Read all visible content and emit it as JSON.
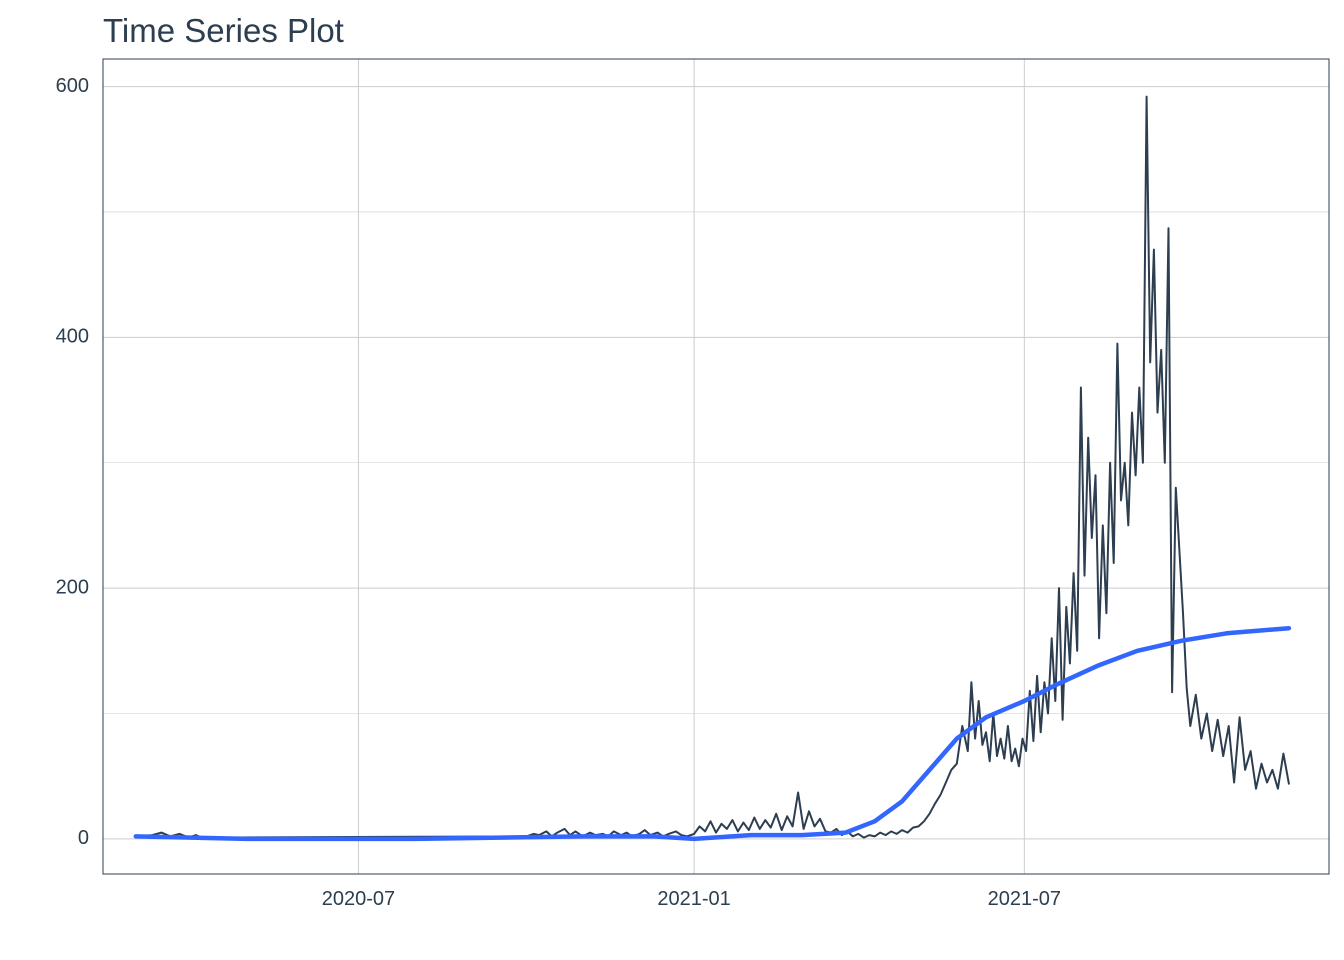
{
  "chart_data": {
    "type": "line",
    "title": "Time Series Plot",
    "xlabel": "",
    "ylabel": "",
    "x_axis": {
      "type": "date",
      "range": [
        "2020-02-12",
        "2021-12-15"
      ],
      "ticks": [
        "2020-07-01",
        "2021-01-01",
        "2021-07-01"
      ],
      "tick_labels": [
        "2020-07",
        "2021-01",
        "2021-07"
      ]
    },
    "y_axis": {
      "range": [
        -28,
        622
      ],
      "ticks": [
        0,
        200,
        400,
        600
      ],
      "tick_labels": [
        "0",
        "200",
        "400",
        "600"
      ]
    },
    "grid": true,
    "legend": "none",
    "colors": {
      "series": "#2c3e50",
      "trend": "#3366ff",
      "grid": "#cccccc",
      "text": "#2c3e50"
    },
    "series": [
      {
        "kind": "raw",
        "points": [
          [
            "2020-03-01",
            2
          ],
          [
            "2020-03-10",
            3
          ],
          [
            "2020-03-15",
            5
          ],
          [
            "2020-03-20",
            2
          ],
          [
            "2020-03-25",
            4
          ],
          [
            "2020-03-30",
            1
          ],
          [
            "2020-04-03",
            3
          ],
          [
            "2020-04-06",
            1
          ],
          [
            "2020-10-01",
            2
          ],
          [
            "2020-10-05",
            4
          ],
          [
            "2020-10-08",
            3
          ],
          [
            "2020-10-12",
            6
          ],
          [
            "2020-10-15",
            2
          ],
          [
            "2020-10-18",
            5
          ],
          [
            "2020-10-22",
            8
          ],
          [
            "2020-10-25",
            3
          ],
          [
            "2020-10-28",
            6
          ],
          [
            "2020-11-01",
            2
          ],
          [
            "2020-11-05",
            5
          ],
          [
            "2020-11-08",
            3
          ],
          [
            "2020-11-12",
            4
          ],
          [
            "2020-11-15",
            2
          ],
          [
            "2020-11-18",
            6
          ],
          [
            "2020-11-22",
            3
          ],
          [
            "2020-11-25",
            5
          ],
          [
            "2020-11-28",
            2
          ],
          [
            "2020-12-02",
            4
          ],
          [
            "2020-12-05",
            7
          ],
          [
            "2020-12-08",
            3
          ],
          [
            "2020-12-12",
            5
          ],
          [
            "2020-12-15",
            2
          ],
          [
            "2020-12-18",
            4
          ],
          [
            "2020-12-22",
            6
          ],
          [
            "2020-12-25",
            3
          ],
          [
            "2020-12-28",
            2
          ],
          [
            "2021-01-01",
            4
          ],
          [
            "2021-01-04",
            10
          ],
          [
            "2021-01-07",
            6
          ],
          [
            "2021-01-10",
            14
          ],
          [
            "2021-01-13",
            5
          ],
          [
            "2021-01-16",
            12
          ],
          [
            "2021-01-19",
            8
          ],
          [
            "2021-01-22",
            15
          ],
          [
            "2021-01-25",
            6
          ],
          [
            "2021-01-28",
            13
          ],
          [
            "2021-01-31",
            7
          ],
          [
            "2021-02-03",
            17
          ],
          [
            "2021-02-06",
            8
          ],
          [
            "2021-02-09",
            15
          ],
          [
            "2021-02-12",
            9
          ],
          [
            "2021-02-15",
            20
          ],
          [
            "2021-02-18",
            7
          ],
          [
            "2021-02-21",
            18
          ],
          [
            "2021-02-24",
            10
          ],
          [
            "2021-02-27",
            37
          ],
          [
            "2021-03-02",
            8
          ],
          [
            "2021-03-05",
            22
          ],
          [
            "2021-03-08",
            10
          ],
          [
            "2021-03-11",
            16
          ],
          [
            "2021-03-14",
            6
          ],
          [
            "2021-03-17",
            5
          ],
          [
            "2021-03-20",
            8
          ],
          [
            "2021-03-23",
            3
          ],
          [
            "2021-03-26",
            6
          ],
          [
            "2021-03-29",
            2
          ],
          [
            "2021-04-01",
            4
          ],
          [
            "2021-04-04",
            1
          ],
          [
            "2021-04-07",
            3
          ],
          [
            "2021-04-10",
            2
          ],
          [
            "2021-04-13",
            5
          ],
          [
            "2021-04-16",
            3
          ],
          [
            "2021-04-19",
            6
          ],
          [
            "2021-04-22",
            4
          ],
          [
            "2021-04-25",
            7
          ],
          [
            "2021-04-28",
            5
          ],
          [
            "2021-05-01",
            9
          ],
          [
            "2021-05-04",
            10
          ],
          [
            "2021-05-07",
            14
          ],
          [
            "2021-05-10",
            20
          ],
          [
            "2021-05-13",
            28
          ],
          [
            "2021-05-16",
            35
          ],
          [
            "2021-05-19",
            45
          ],
          [
            "2021-05-22",
            55
          ],
          [
            "2021-05-25",
            60
          ],
          [
            "2021-05-28",
            90
          ],
          [
            "2021-05-31",
            70
          ],
          [
            "2021-06-02",
            125
          ],
          [
            "2021-06-04",
            80
          ],
          [
            "2021-06-06",
            110
          ],
          [
            "2021-06-08",
            75
          ],
          [
            "2021-06-10",
            85
          ],
          [
            "2021-06-12",
            62
          ],
          [
            "2021-06-14",
            100
          ],
          [
            "2021-06-16",
            66
          ],
          [
            "2021-06-18",
            80
          ],
          [
            "2021-06-20",
            64
          ],
          [
            "2021-06-22",
            90
          ],
          [
            "2021-06-24",
            62
          ],
          [
            "2021-06-26",
            72
          ],
          [
            "2021-06-28",
            58
          ],
          [
            "2021-06-30",
            80
          ],
          [
            "2021-07-02",
            70
          ],
          [
            "2021-07-04",
            118
          ],
          [
            "2021-07-06",
            78
          ],
          [
            "2021-07-08",
            130
          ],
          [
            "2021-07-10",
            85
          ],
          [
            "2021-07-12",
            125
          ],
          [
            "2021-07-14",
            100
          ],
          [
            "2021-07-16",
            160
          ],
          [
            "2021-07-18",
            110
          ],
          [
            "2021-07-20",
            200
          ],
          [
            "2021-07-22",
            95
          ],
          [
            "2021-07-24",
            185
          ],
          [
            "2021-07-26",
            140
          ],
          [
            "2021-07-28",
            212
          ],
          [
            "2021-07-30",
            150
          ],
          [
            "2021-08-01",
            360
          ],
          [
            "2021-08-03",
            210
          ],
          [
            "2021-08-05",
            320
          ],
          [
            "2021-08-07",
            240
          ],
          [
            "2021-08-09",
            290
          ],
          [
            "2021-08-11",
            160
          ],
          [
            "2021-08-13",
            250
          ],
          [
            "2021-08-15",
            180
          ],
          [
            "2021-08-17",
            300
          ],
          [
            "2021-08-19",
            220
          ],
          [
            "2021-08-21",
            395
          ],
          [
            "2021-08-23",
            270
          ],
          [
            "2021-08-25",
            300
          ],
          [
            "2021-08-27",
            250
          ],
          [
            "2021-08-29",
            340
          ],
          [
            "2021-08-31",
            290
          ],
          [
            "2021-09-02",
            360
          ],
          [
            "2021-09-04",
            300
          ],
          [
            "2021-09-06",
            592
          ],
          [
            "2021-09-08",
            380
          ],
          [
            "2021-09-10",
            470
          ],
          [
            "2021-09-12",
            340
          ],
          [
            "2021-09-14",
            390
          ],
          [
            "2021-09-16",
            300
          ],
          [
            "2021-09-18",
            487
          ],
          [
            "2021-09-20",
            117
          ],
          [
            "2021-09-22",
            280
          ],
          [
            "2021-09-24",
            230
          ],
          [
            "2021-09-26",
            180
          ],
          [
            "2021-09-28",
            120
          ],
          [
            "2021-09-30",
            90
          ],
          [
            "2021-10-03",
            115
          ],
          [
            "2021-10-06",
            80
          ],
          [
            "2021-10-09",
            100
          ],
          [
            "2021-10-12",
            70
          ],
          [
            "2021-10-15",
            95
          ],
          [
            "2021-10-18",
            66
          ],
          [
            "2021-10-21",
            90
          ],
          [
            "2021-10-24",
            45
          ],
          [
            "2021-10-27",
            97
          ],
          [
            "2021-10-30",
            55
          ],
          [
            "2021-11-02",
            70
          ],
          [
            "2021-11-05",
            40
          ],
          [
            "2021-11-08",
            60
          ],
          [
            "2021-11-11",
            45
          ],
          [
            "2021-11-14",
            55
          ],
          [
            "2021-11-17",
            40
          ],
          [
            "2021-11-20",
            68
          ],
          [
            "2021-11-23",
            44
          ]
        ]
      },
      {
        "kind": "trend",
        "points": [
          [
            "2020-03-01",
            2
          ],
          [
            "2020-05-01",
            0
          ],
          [
            "2020-08-01",
            0
          ],
          [
            "2020-11-01",
            2
          ],
          [
            "2020-12-10",
            2
          ],
          [
            "2021-01-01",
            0
          ],
          [
            "2021-02-01",
            3
          ],
          [
            "2021-03-01",
            3
          ],
          [
            "2021-03-25",
            5
          ],
          [
            "2021-04-10",
            14
          ],
          [
            "2021-04-25",
            30
          ],
          [
            "2021-05-10",
            55
          ],
          [
            "2021-05-25",
            80
          ],
          [
            "2021-06-10",
            97
          ],
          [
            "2021-07-01",
            110
          ],
          [
            "2021-07-20",
            124
          ],
          [
            "2021-08-10",
            138
          ],
          [
            "2021-09-01",
            150
          ],
          [
            "2021-09-25",
            158
          ],
          [
            "2021-10-20",
            164
          ],
          [
            "2021-11-23",
            168
          ]
        ]
      }
    ]
  }
}
